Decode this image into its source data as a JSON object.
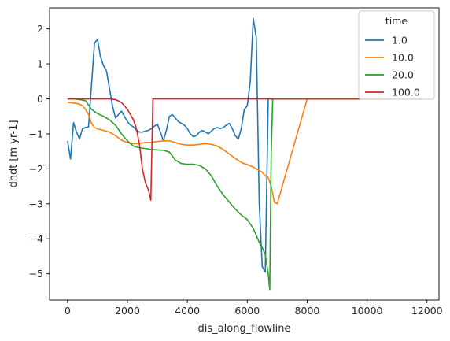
{
  "chart_data": {
    "type": "line",
    "title": "",
    "xlabel": "dis_along_flowline",
    "ylabel": "dhdt [m yr-1]",
    "xlim": [
      -600,
      12400
    ],
    "ylim": [
      -5.75,
      2.6
    ],
    "xticks": [
      0,
      2000,
      4000,
      6000,
      8000,
      10000,
      12000
    ],
    "yticks": [
      -5,
      -4,
      -3,
      -2,
      -1,
      0,
      1,
      2
    ],
    "grid": false,
    "legend": {
      "title": "time",
      "placement": "top-right"
    },
    "series": [
      {
        "name": "1.0",
        "color": "#1f77b4",
        "x": [
          0,
          100,
          200,
          300,
          400,
          500,
          600,
          700,
          800,
          900,
          1000,
          1100,
          1200,
          1300,
          1400,
          1500,
          1600,
          1700,
          1800,
          1900,
          2000,
          2100,
          2200,
          2300,
          2400,
          2500,
          2600,
          2700,
          2800,
          2900,
          3000,
          3100,
          3200,
          3300,
          3400,
          3500,
          3600,
          3700,
          3800,
          3900,
          4000,
          4100,
          4200,
          4300,
          4400,
          4500,
          4600,
          4700,
          4800,
          4900,
          5000,
          5100,
          5200,
          5300,
          5400,
          5500,
          5600,
          5700,
          5800,
          5900,
          6000,
          6100,
          6200,
          6300,
          6400,
          6500,
          6600,
          6700,
          6800,
          6900,
          7000,
          8000,
          9000,
          10000,
          11000,
          11800
        ],
        "y": [
          -1.2,
          -1.72,
          -0.68,
          -0.95,
          -1.15,
          -0.85,
          -0.82,
          -0.8,
          0.4,
          1.6,
          1.7,
          1.2,
          0.95,
          0.8,
          0.3,
          -0.2,
          -0.55,
          -0.45,
          -0.35,
          -0.5,
          -0.65,
          -0.75,
          -0.8,
          -0.9,
          -0.95,
          -0.95,
          -0.92,
          -0.9,
          -0.85,
          -0.78,
          -0.72,
          -0.95,
          -1.2,
          -0.9,
          -0.5,
          -0.45,
          -0.55,
          -0.65,
          -0.7,
          -0.75,
          -0.85,
          -1.0,
          -1.08,
          -1.05,
          -0.95,
          -0.9,
          -0.95,
          -1.0,
          -0.92,
          -0.85,
          -0.82,
          -0.85,
          -0.82,
          -0.75,
          -0.7,
          -0.85,
          -1.05,
          -1.15,
          -0.85,
          -0.3,
          -0.2,
          0.5,
          2.3,
          1.75,
          -3.0,
          -4.8,
          -4.95,
          0.0,
          0.0,
          0.0,
          0.0,
          0.0,
          0.0,
          0.0,
          0.0,
          0.0
        ]
      },
      {
        "name": "10.0",
        "color": "#ff7f0e",
        "x": [
          0,
          200,
          400,
          500,
          600,
          700,
          800,
          900,
          1000,
          1200,
          1400,
          1600,
          1800,
          2000,
          2200,
          2400,
          2600,
          2800,
          3000,
          3200,
          3400,
          3600,
          3800,
          4000,
          4200,
          4400,
          4600,
          4800,
          5000,
          5200,
          5400,
          5600,
          5800,
          6000,
          6200,
          6400,
          6500,
          6600,
          6700,
          6800,
          6900,
          7000,
          8000,
          9000,
          10000,
          11000,
          11800
        ],
        "y": [
          -0.1,
          -0.12,
          -0.15,
          -0.2,
          -0.3,
          -0.45,
          -0.7,
          -0.82,
          -0.86,
          -0.9,
          -0.95,
          -1.05,
          -1.18,
          -1.25,
          -1.28,
          -1.27,
          -1.25,
          -1.24,
          -1.22,
          -1.2,
          -1.2,
          -1.25,
          -1.3,
          -1.32,
          -1.32,
          -1.3,
          -1.28,
          -1.3,
          -1.35,
          -1.45,
          -1.58,
          -1.7,
          -1.82,
          -1.88,
          -1.95,
          -2.05,
          -2.1,
          -2.2,
          -2.25,
          -2.5,
          -2.95,
          -3.0,
          0.0,
          0.0,
          0.0,
          0.0,
          0.0
        ],
        "y_note": ""
      },
      {
        "name": "20.0",
        "color": "#2ca02c",
        "x": [
          0,
          200,
          400,
          600,
          800,
          1000,
          1200,
          1400,
          1600,
          1800,
          2000,
          2200,
          2400,
          2600,
          2800,
          3000,
          3200,
          3400,
          3600,
          3800,
          4000,
          4200,
          4400,
          4600,
          4800,
          5000,
          5200,
          5400,
          5600,
          5800,
          6000,
          6200,
          6300,
          6400,
          6500,
          6600,
          6700,
          6750,
          6800,
          6850,
          7000,
          8000,
          9000,
          10000,
          11000,
          11800
        ],
        "y": [
          0.0,
          0.0,
          -0.02,
          -0.05,
          -0.3,
          -0.42,
          -0.5,
          -0.6,
          -0.75,
          -1.0,
          -1.2,
          -1.35,
          -1.4,
          -1.42,
          -1.45,
          -1.46,
          -1.47,
          -1.52,
          -1.75,
          -1.85,
          -1.87,
          -1.87,
          -1.9,
          -2.0,
          -2.2,
          -2.5,
          -2.75,
          -2.95,
          -3.15,
          -3.32,
          -3.45,
          -3.7,
          -3.9,
          -4.1,
          -4.25,
          -4.45,
          -5.0,
          -5.45,
          -1.5,
          0.0,
          0.0,
          0.0,
          0.0,
          0.0,
          0.0,
          0.0
        ]
      },
      {
        "name": "100.0",
        "color": "#d62728",
        "x": [
          0,
          500,
          1000,
          1400,
          1600,
          1800,
          2000,
          2200,
          2300,
          2400,
          2500,
          2600,
          2700,
          2780,
          2850,
          3000,
          4000,
          5000,
          6000,
          7000,
          8000,
          9000,
          10000,
          11000,
          11800
        ],
        "y": [
          0.0,
          0.0,
          0.0,
          0.0,
          -0.02,
          -0.1,
          -0.3,
          -0.6,
          -0.85,
          -1.3,
          -2.0,
          -2.4,
          -2.6,
          -2.9,
          0.0,
          0.0,
          0.0,
          0.0,
          0.0,
          0.0,
          0.0,
          0.0,
          0.0,
          0.0,
          0.0
        ]
      }
    ]
  }
}
